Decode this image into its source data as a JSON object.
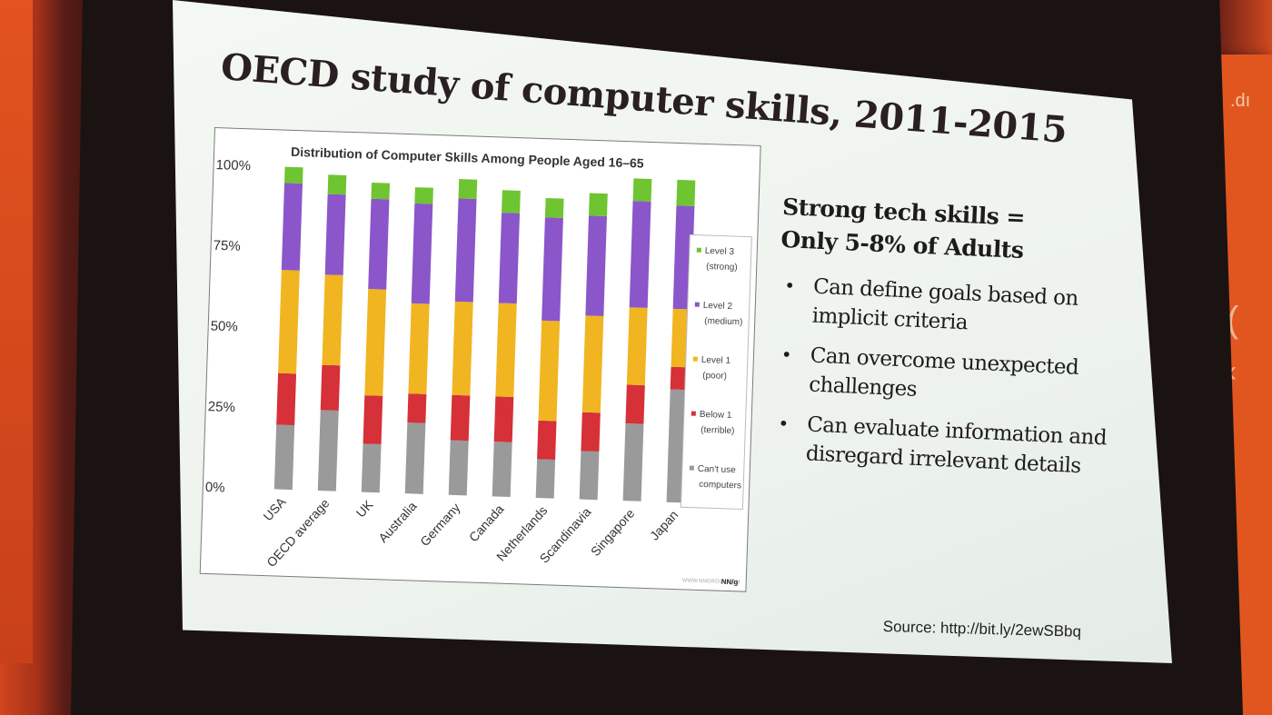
{
  "slide": {
    "title": "OECD study of computer skills, 2011-2015",
    "headline_line1": "Strong tech skills =",
    "headline_line2": "Only 5-8% of Adults",
    "bullets": [
      [
        "Can define goals based on",
        "implicit criteria"
      ],
      [
        "Can overcome unexpected",
        "challenges"
      ],
      [
        "Can evaluate information and",
        "disregard irrelevant details"
      ]
    ],
    "source": "Source: http://bit.ly/2ewSBbq"
  },
  "side_banner": {
    "text": ".dı",
    "glyph_1": "(",
    "glyph_2": "‹"
  },
  "chart_data": {
    "type": "bar",
    "stacked": true,
    "title": "Distribution of Computer Skills Among People Aged 16–65",
    "yticks": [
      "0%",
      "25%",
      "50%",
      "75%",
      "100%"
    ],
    "ylim": [
      0,
      100
    ],
    "grid": false,
    "legend_position": "right",
    "categories": [
      "USA",
      "OECD average",
      "UK",
      "Australia",
      "Germany",
      "Canada",
      "Netherlands",
      "Scandinavia",
      "Singapore",
      "Japan"
    ],
    "series": [
      {
        "name": "Can't use computers",
        "label_lines": [
          "Can't use",
          "computers"
        ],
        "color": "#9a9a9a",
        "values": [
          20,
          25,
          15,
          22,
          17,
          17,
          12,
          15,
          24,
          35
        ]
      },
      {
        "name": "Below 1 (terrible)",
        "label_lines": [
          "Below 1",
          "(terrible)"
        ],
        "color": "#d63039",
        "values": [
          16,
          14,
          15,
          9,
          14,
          14,
          12,
          12,
          12,
          7
        ]
      },
      {
        "name": "Level 1 (poor)",
        "label_lines": [
          "Level 1",
          "(poor)"
        ],
        "color": "#f0b521",
        "values": [
          32,
          28,
          33,
          28,
          29,
          29,
          31,
          30,
          24,
          18
        ]
      },
      {
        "name": "Level 2 (medium)",
        "label_lines": [
          "Level 2",
          "(medium)"
        ],
        "color": "#8a56c9",
        "values": [
          27,
          25,
          28,
          31,
          32,
          28,
          32,
          31,
          33,
          32
        ]
      },
      {
        "name": "Level 3 (strong)",
        "label_lines": [
          "Level 3",
          "(strong)"
        ],
        "color": "#6fc431",
        "values": [
          5,
          6,
          5,
          5,
          6,
          7,
          6,
          7,
          7,
          8
        ]
      }
    ],
    "watermark": "WWW.NNGROUP.COM",
    "logo": "NN/g"
  }
}
